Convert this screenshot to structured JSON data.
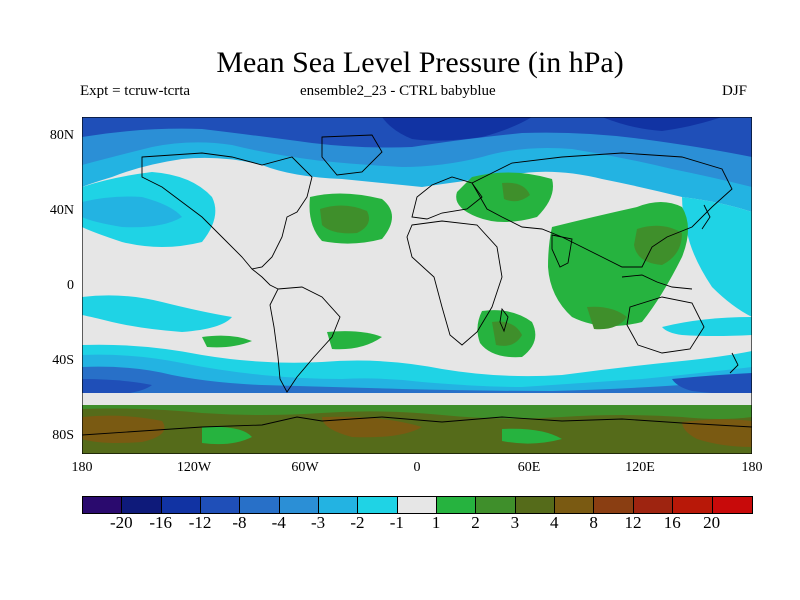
{
  "title": "Mean Sea Level Pressure (in hPa)",
  "subtitle_left": "Expt = tcruw-tcrta",
  "subtitle_center": "ensemble2_23 - CTRL babyblue",
  "subtitle_right": "DJF",
  "map": {
    "projection": "cylindrical-equidistant",
    "lon_range": [
      -180,
      180
    ],
    "lat_range": [
      -90,
      90
    ],
    "lat_labels": [
      "80N",
      "40N",
      "0",
      "40S",
      "80S"
    ],
    "lon_labels": [
      "180",
      "120W",
      "60W",
      "0",
      "60E",
      "120E",
      "180"
    ]
  },
  "colorbar": {
    "colors": [
      "#2a0a6e",
      "#0e1a7a",
      "#1133a3",
      "#1f4fb8",
      "#2870c8",
      "#2b8fd6",
      "#23b3e2",
      "#1fd3e5",
      "#e6e6e6",
      "#26b33f",
      "#3f8f2b",
      "#556b1a",
      "#7a5a12",
      "#8a3e12",
      "#9e2410",
      "#b81808",
      "#c80a0a"
    ],
    "labels": [
      "-20",
      "-16",
      "-12",
      "-8",
      "-4",
      "-3",
      "-2",
      "-1",
      "1",
      "2",
      "3",
      "4",
      "8",
      "12",
      "16",
      "20"
    ]
  }
}
